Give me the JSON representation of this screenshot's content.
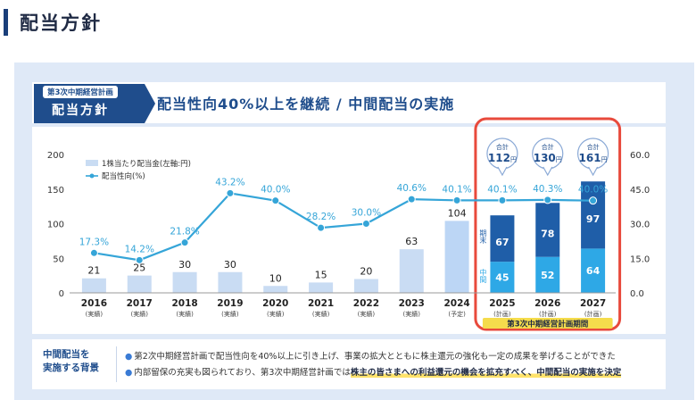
{
  "page": {
    "title": "配当方針"
  },
  "badge": {
    "small": "第3次中期経営計画",
    "big": "配当方針"
  },
  "headline": "配当性向40%以上を継続 / 中間配当の実施",
  "chart_data": {
    "type": "bar+line",
    "categories": [
      "2016",
      "2017",
      "2018",
      "2019",
      "2020",
      "2021",
      "2022",
      "2023",
      "2024",
      "2025",
      "2026",
      "2027"
    ],
    "category_notes": [
      "(実績)",
      "(実績)",
      "(実績)",
      "(実績)",
      "(実績)",
      "(実績)",
      "(実績)",
      "(実績)",
      "(予定)",
      "(計画)",
      "(計画)",
      "(計画)"
    ],
    "dividend": [
      21,
      25,
      30,
      30,
      10,
      15,
      20,
      63,
      104,
      null,
      null,
      null
    ],
    "interim": [
      null,
      null,
      null,
      null,
      null,
      null,
      null,
      null,
      null,
      45,
      52,
      64
    ],
    "year_end": [
      null,
      null,
      null,
      null,
      null,
      null,
      null,
      null,
      null,
      67,
      78,
      97
    ],
    "totals": [
      null,
      null,
      null,
      null,
      null,
      null,
      null,
      null,
      null,
      112,
      130,
      161
    ],
    "payout_ratio": [
      17.3,
      14.2,
      21.8,
      43.2,
      40.0,
      28.2,
      30.0,
      40.6,
      40.1,
      40.1,
      40.3,
      40.0
    ],
    "payout_labels": [
      "17.3%",
      "14.2%",
      "21.8%",
      "43.2%",
      "40.0%",
      "28.2%",
      "30.0%",
      "40.6%",
      "40.1%",
      "40.1%",
      "40.3%",
      "40.0%"
    ],
    "left_ticks": [
      "0",
      "50",
      "100",
      "150",
      "200"
    ],
    "right_ticks": [
      "0.0",
      "15.0",
      "30.0",
      "45.0",
      "60.0"
    ],
    "left_ylim": [
      0,
      200
    ],
    "right_ylim": [
      0,
      60
    ],
    "legend": {
      "dividend": "1株当たり配当金(左軸:円)",
      "payout": "配当性向(%)"
    },
    "total_label": "合計",
    "total_unit": "円",
    "label_interim": "中間",
    "label_year_end": "期末",
    "plan_period_label": "第3次中期経営計画期間",
    "colors": {
      "past_bar": "#c9dcf3",
      "future_bar": "#bcd6f5",
      "interim": "#2ea8e6",
      "year_end": "#1f5ea8",
      "line": "#35a5d8",
      "label_line": "#35a5d8",
      "highlight": "#e84a3c",
      "plan_label_bg": "#f5dc4c"
    }
  },
  "background": {
    "label_line1": "中間配当を",
    "label_line2": "実施する背景",
    "bullet": "●",
    "line1": "第2次中期経営計画で配当性向を40%以上に引き上げ、事業の拡大とともに株主還元の強化も一定の成果を挙げることができた",
    "line2_pre": "内部留保の充実も図られており、第3次中期経営計画では",
    "line2_hl": "株主の皆さまへの利益還元の機会を拡充すべく、中間配当の実施を決定"
  }
}
